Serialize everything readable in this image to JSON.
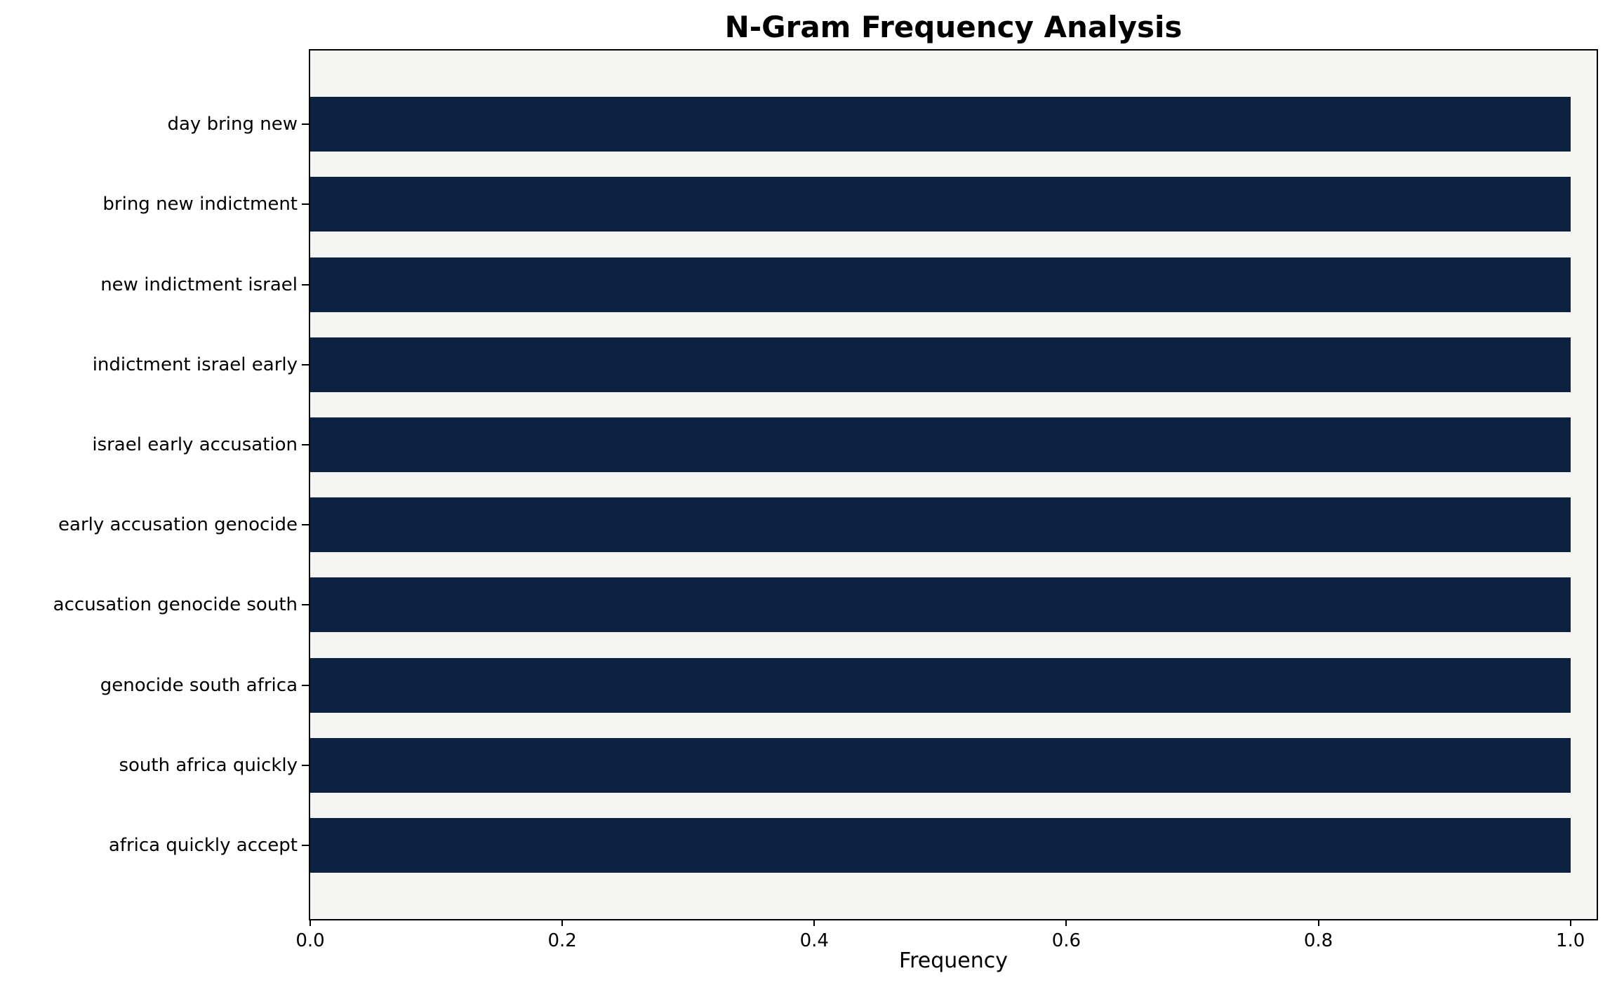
{
  "chart_data": {
    "type": "bar",
    "orientation": "horizontal",
    "title": "N-Gram Frequency Analysis",
    "xlabel": "Frequency",
    "ylabel": "",
    "categories": [
      "day bring new",
      "bring new indictment",
      "new indictment israel",
      "indictment israel early",
      "israel early accusation",
      "early accusation genocide",
      "accusation genocide south",
      "genocide south africa",
      "south africa quickly",
      "africa quickly accept"
    ],
    "values": [
      1.0,
      1.0,
      1.0,
      1.0,
      1.0,
      1.0,
      1.0,
      1.0,
      1.0,
      1.0
    ],
    "xlim": [
      0,
      1.0208
    ],
    "x_ticks": [
      0.0,
      0.2,
      0.4,
      0.6,
      0.8,
      1.0
    ],
    "x_tick_labels": [
      "0.0",
      "0.2",
      "0.4",
      "0.6",
      "0.8",
      "1.0"
    ],
    "bar_color": "#0d2240",
    "plot_bg": "#f5f5f3",
    "grid": false,
    "legend": null
  }
}
